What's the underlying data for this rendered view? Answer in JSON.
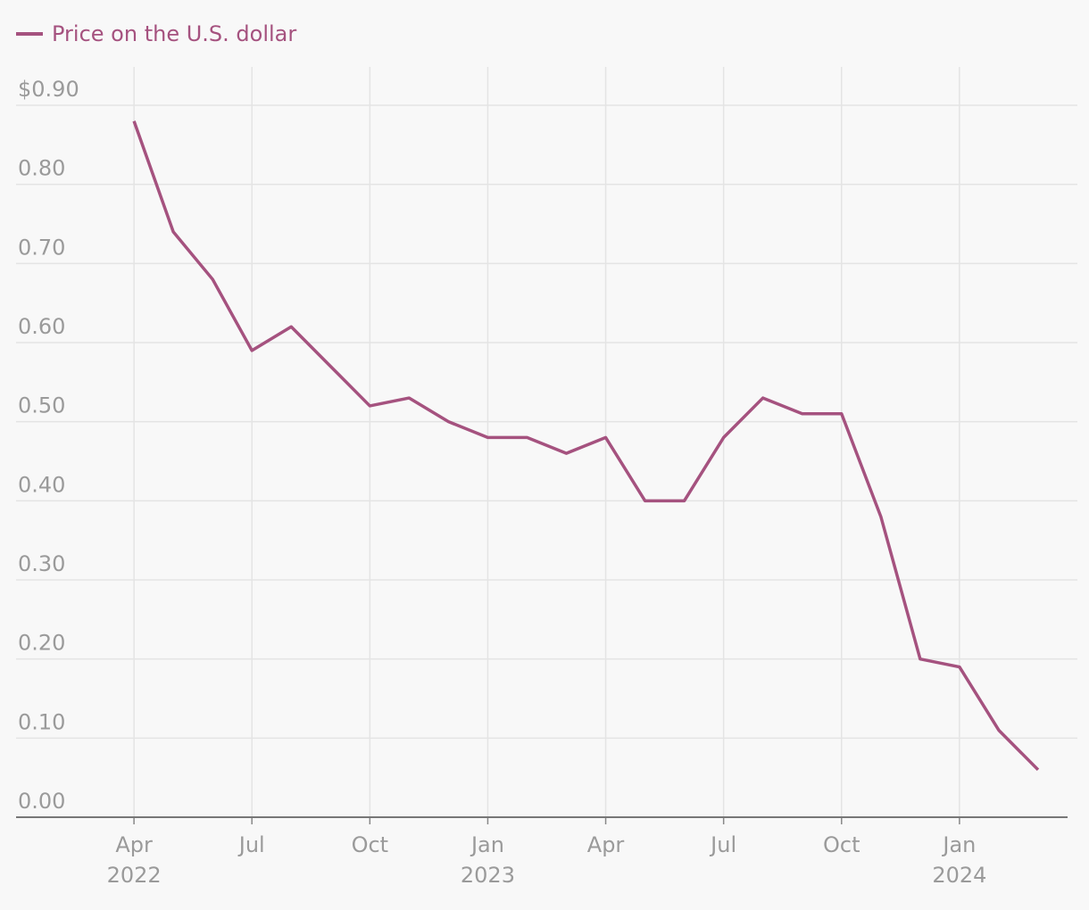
{
  "chart_data": {
    "type": "line",
    "x": [
      "2022-04",
      "2022-05",
      "2022-06",
      "2022-07",
      "2022-08",
      "2022-09",
      "2022-10",
      "2022-11",
      "2022-12",
      "2023-01",
      "2023-02",
      "2023-03",
      "2023-04",
      "2023-05",
      "2023-06",
      "2023-07",
      "2023-08",
      "2023-09",
      "2023-10",
      "2023-11",
      "2023-12",
      "2024-01",
      "2024-02",
      "2024-03"
    ],
    "series": [
      {
        "name": "Price on the U.S. dollar",
        "color": "#a5527f",
        "values": [
          0.88,
          0.74,
          0.68,
          0.59,
          0.62,
          0.57,
          0.52,
          0.53,
          0.5,
          0.48,
          0.48,
          0.46,
          0.48,
          0.4,
          0.4,
          0.48,
          0.53,
          0.51,
          0.51,
          0.38,
          0.2,
          0.19,
          0.11,
          0.06
        ]
      }
    ],
    "xlim": [
      "2022-01",
      "2024-04"
    ],
    "xticks": [
      {
        "value": "2022-04",
        "label": "Apr"
      },
      {
        "value": "2022-07",
        "label": "Jul"
      },
      {
        "value": "2022-10",
        "label": "Oct"
      },
      {
        "value": "2023-01",
        "label": "Jan"
      },
      {
        "value": "2023-04",
        "label": "Apr"
      },
      {
        "value": "2023-07",
        "label": "Jul"
      },
      {
        "value": "2023-10",
        "label": "Oct"
      },
      {
        "value": "2024-01",
        "label": "Jan"
      }
    ],
    "xtick_years": [
      {
        "value": "2022-04",
        "label": "2022"
      },
      {
        "value": "2023-01",
        "label": "2023"
      },
      {
        "value": "2024-01",
        "label": "2024"
      }
    ],
    "ylim": [
      0,
      0.9
    ],
    "yticks": [
      {
        "value": 0,
        "label": "0.00"
      },
      {
        "value": 0.1,
        "label": "0.10"
      },
      {
        "value": 0.2,
        "label": "0.20"
      },
      {
        "value": 0.3,
        "label": "0.30"
      },
      {
        "value": 0.4,
        "label": "0.40"
      },
      {
        "value": 0.5,
        "label": "0.50"
      },
      {
        "value": 0.6,
        "label": "0.60"
      },
      {
        "value": 0.7,
        "label": "0.70"
      },
      {
        "value": 0.8,
        "label": "0.80"
      },
      {
        "value": 0.9,
        "label": "$0.90"
      }
    ],
    "grid": true
  }
}
